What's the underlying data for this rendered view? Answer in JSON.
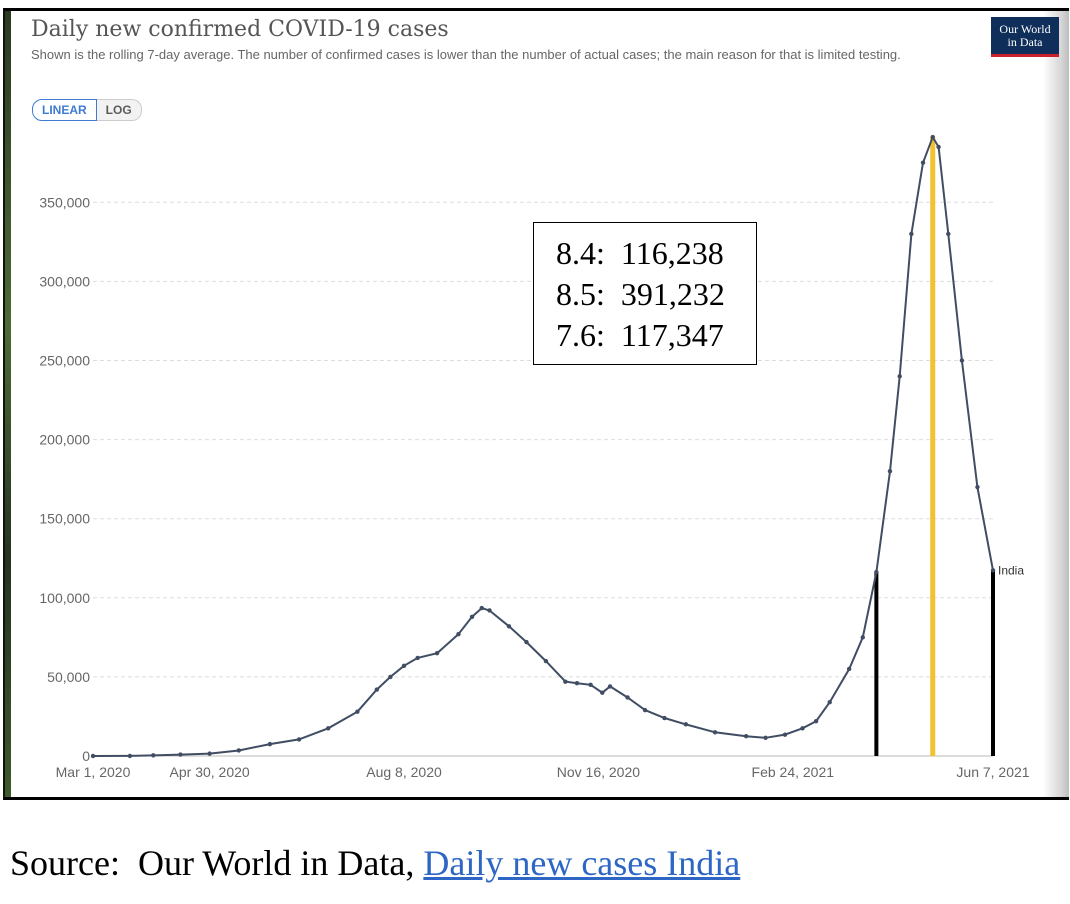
{
  "header": {
    "title": "Daily new confirmed COVID-19 cases",
    "subtitle": "Shown is the rolling 7-day average. The number of confirmed cases is lower than the number of actual cases; the main reason for that is limited testing.",
    "logo_line1": "Our World",
    "logo_line2": "in Data"
  },
  "toggle": {
    "linear_label": "LINEAR",
    "log_label": "LOG",
    "selected": "LINEAR"
  },
  "colors": {
    "series": "#404d63",
    "grid": "#dddddd",
    "marker_black": "#000000",
    "marker_yellow": "#f2c230",
    "accent_blue": "#3f7bd1"
  },
  "readout": [
    {
      "label": "8.4:",
      "value": "116,238"
    },
    {
      "label": "8.5:",
      "value": "391,232"
    },
    {
      "label": "7.6:",
      "value": "117,347"
    }
  ],
  "source": {
    "prefix": "Source:  Our World in Data, ",
    "link_text": "Daily new cases India"
  },
  "chart_data": {
    "type": "line",
    "title": "Daily new confirmed COVID-19 cases",
    "subtitle": "Shown is the rolling 7-day average. The number of confirmed cases is lower than the number of actual cases; the main reason for that is limited testing.",
    "x_tick_labels": [
      "Mar 1, 2020",
      "Apr 30, 2020",
      "Aug 8, 2020",
      "Nov 16, 2020",
      "Feb 24, 2021",
      "Jun 7, 2021"
    ],
    "x_range": [
      "2020-03-01",
      "2021-06-07"
    ],
    "y_ticks": [
      0,
      50000,
      100000,
      150000,
      200000,
      250000,
      300000,
      350000
    ],
    "y_tick_labels": [
      "0",
      "50,000",
      "100,000",
      "150,000",
      "200,000",
      "250,000",
      "300,000",
      "350,000"
    ],
    "ylim": [
      0,
      390000
    ],
    "grid": "horizontal dashed",
    "series": [
      {
        "name": "India",
        "points": [
          [
            "2020-03-01",
            0
          ],
          [
            "2020-03-20",
            50
          ],
          [
            "2020-04-01",
            400
          ],
          [
            "2020-04-15",
            900
          ],
          [
            "2020-04-30",
            1500
          ],
          [
            "2020-05-15",
            3500
          ],
          [
            "2020-05-31",
            7500
          ],
          [
            "2020-06-15",
            10500
          ],
          [
            "2020-06-30",
            17500
          ],
          [
            "2020-07-15",
            28000
          ],
          [
            "2020-07-25",
            42000
          ],
          [
            "2020-08-01",
            50000
          ],
          [
            "2020-08-08",
            57000
          ],
          [
            "2020-08-15",
            62000
          ],
          [
            "2020-08-25",
            65000
          ],
          [
            "2020-09-05",
            77000
          ],
          [
            "2020-09-12",
            88000
          ],
          [
            "2020-09-17",
            93500
          ],
          [
            "2020-09-21",
            92000
          ],
          [
            "2020-10-01",
            82000
          ],
          [
            "2020-10-10",
            72000
          ],
          [
            "2020-10-20",
            60000
          ],
          [
            "2020-10-30",
            47000
          ],
          [
            "2020-11-05",
            46000
          ],
          [
            "2020-11-12",
            45000
          ],
          [
            "2020-11-18",
            40000
          ],
          [
            "2020-11-22",
            44000
          ],
          [
            "2020-12-01",
            37000
          ],
          [
            "2020-12-10",
            29000
          ],
          [
            "2020-12-20",
            24000
          ],
          [
            "2020-12-31",
            20000
          ],
          [
            "2021-01-15",
            15000
          ],
          [
            "2021-01-31",
            12500
          ],
          [
            "2021-02-10",
            11500
          ],
          [
            "2021-02-20",
            13500
          ],
          [
            "2021-03-01",
            17500
          ],
          [
            "2021-03-08",
            22000
          ],
          [
            "2021-03-15",
            34000
          ],
          [
            "2021-03-25",
            55000
          ],
          [
            "2021-04-01",
            75000
          ],
          [
            "2021-04-08",
            116238
          ],
          [
            "2021-04-15",
            180000
          ],
          [
            "2021-04-20",
            240000
          ],
          [
            "2021-04-26",
            330000
          ],
          [
            "2021-05-02",
            375000
          ],
          [
            "2021-05-07",
            391232
          ],
          [
            "2021-05-10",
            385000
          ],
          [
            "2021-05-15",
            330000
          ],
          [
            "2021-05-22",
            250000
          ],
          [
            "2021-05-30",
            170000
          ],
          [
            "2021-06-07",
            117347
          ]
        ]
      }
    ],
    "markers": [
      {
        "label": "8.4",
        "date": "2021-04-08",
        "value": 116238,
        "color": "#000000"
      },
      {
        "label": "8.5",
        "date": "2021-05-07",
        "value": 391232,
        "color": "#f2c230"
      },
      {
        "label": "7.6",
        "date": "2021-06-07",
        "value": 117347,
        "color": "#000000"
      }
    ]
  }
}
